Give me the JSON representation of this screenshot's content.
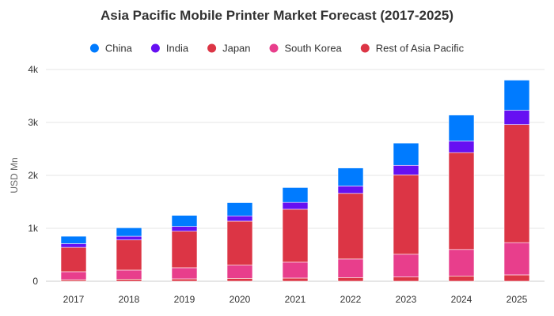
{
  "chart_data": {
    "type": "bar",
    "stacked": true,
    "title": "Asia Pacific Mobile Printer Market Forecast (2017-2025)",
    "xlabel": "",
    "ylabel": "USD Mn",
    "categories": [
      "2017",
      "2018",
      "2019",
      "2020",
      "2021",
      "2022",
      "2023",
      "2024",
      "2025"
    ],
    "ylim": [
      0,
      4000
    ],
    "yticks": [
      0,
      1000,
      2000,
      3000,
      4000
    ],
    "ytick_labels": [
      "0",
      "1k",
      "2k",
      "3k",
      "4k"
    ],
    "grid": true,
    "legend_position": "top",
    "series": [
      {
        "name": "Rest of Asia Pacific",
        "color": "#dc3545",
        "values": [
          30,
          40,
          45,
          55,
          60,
          70,
          80,
          100,
          120
        ]
      },
      {
        "name": "South Korea",
        "color": "#e83e8c",
        "values": [
          150,
          170,
          210,
          250,
          300,
          350,
          430,
          500,
          610
        ]
      },
      {
        "name": "Japan",
        "color": "#dc3545",
        "values": [
          460,
          570,
          690,
          830,
          1000,
          1240,
          1500,
          1830,
          2230
        ]
      },
      {
        "name": "India",
        "color": "#6610f2",
        "values": [
          70,
          70,
          90,
          100,
          130,
          140,
          180,
          220,
          270
        ]
      },
      {
        "name": "China",
        "color": "#007bff",
        "values": [
          140,
          160,
          210,
          250,
          280,
          340,
          420,
          490,
          570
        ]
      }
    ],
    "legend_order": [
      "China",
      "India",
      "Japan",
      "South Korea",
      "Rest of Asia Pacific"
    ]
  }
}
